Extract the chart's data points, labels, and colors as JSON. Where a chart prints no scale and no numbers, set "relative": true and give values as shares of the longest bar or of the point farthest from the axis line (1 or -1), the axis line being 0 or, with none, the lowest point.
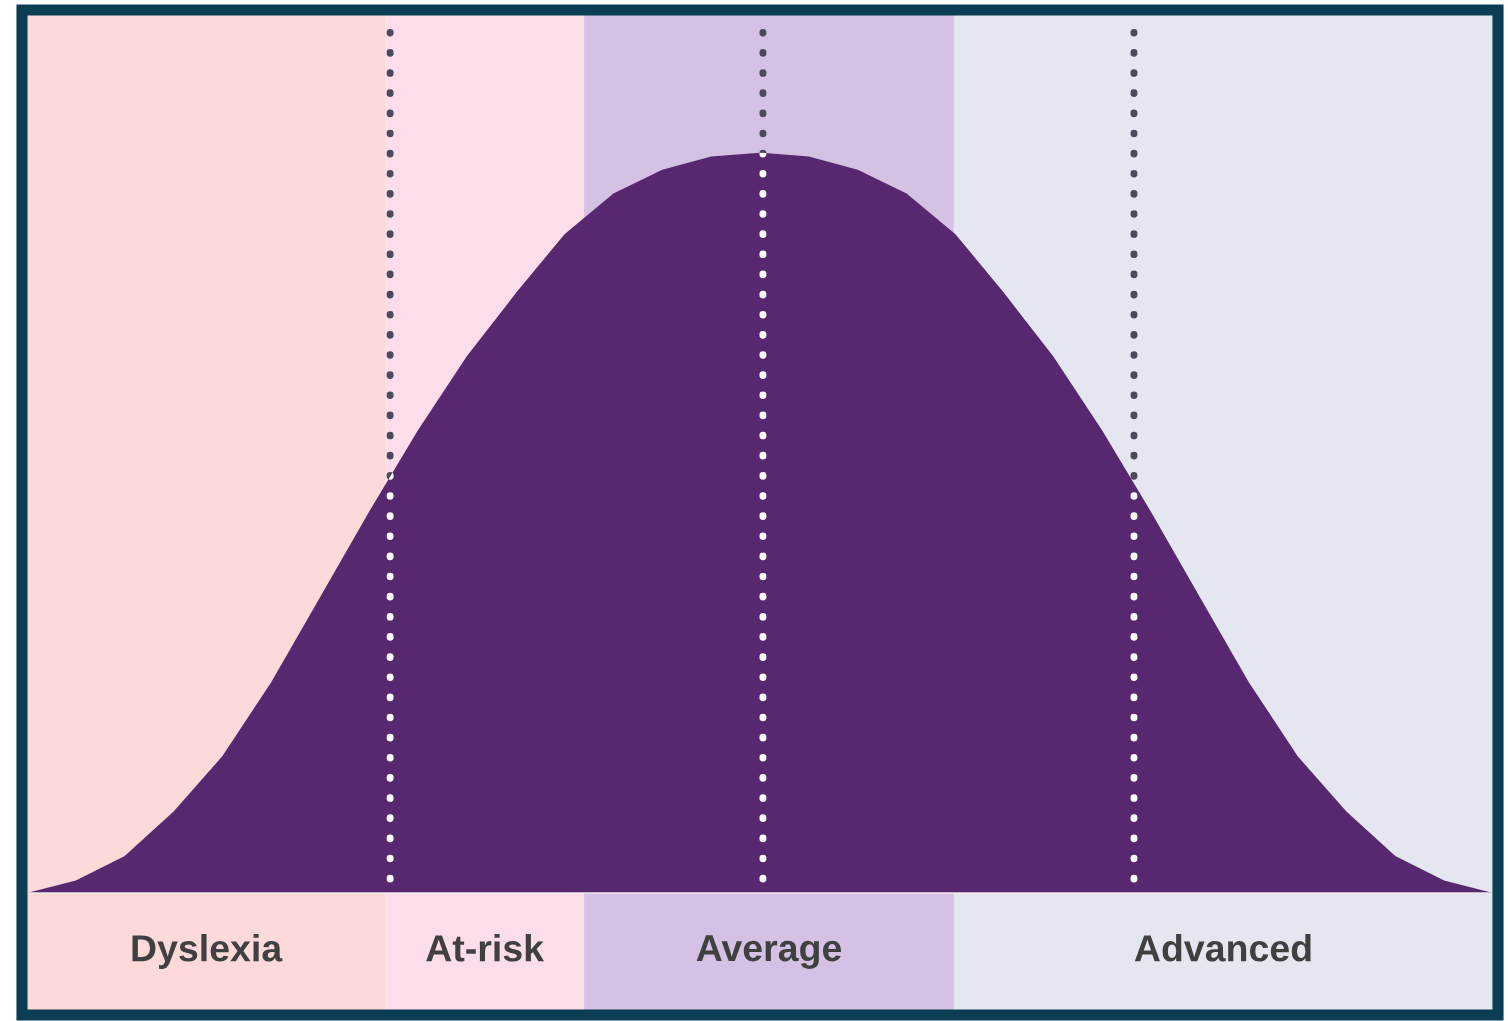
{
  "chart_data": {
    "type": "area",
    "relative": true,
    "categories": [
      null,
      null,
      null,
      null,
      null,
      null,
      null,
      null,
      null,
      null,
      null,
      null,
      null,
      null,
      null,
      null,
      null,
      null,
      null,
      null,
      null,
      null,
      null,
      null,
      null,
      null,
      null,
      null,
      null,
      null,
      null
    ],
    "series": [
      {
        "color": "#57276f",
        "values": [
          0,
          0.017,
          0.05,
          0.11,
          0.185,
          0.285,
          0.4,
          0.515,
          0.625,
          0.725,
          0.81,
          0.89,
          0.945,
          0.977,
          0.995,
          1,
          0.995,
          0.977,
          0.945,
          0.89,
          0.81,
          0.725,
          0.625,
          0.515,
          0.4,
          0.285,
          0.185,
          0.11,
          0.05,
          0.017,
          0
        ]
      }
    ],
    "annotations": [
      "Dyslexia",
      "At-risk",
      "Average",
      "Advanced"
    ],
    "legend": false
  }
}
